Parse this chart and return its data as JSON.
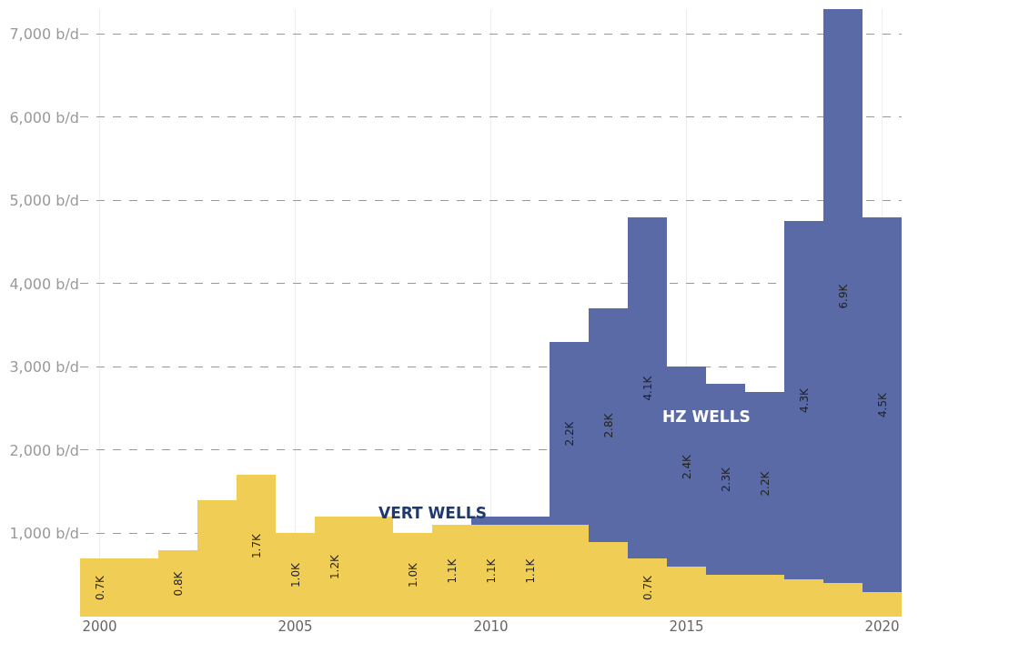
{
  "chart_data": {
    "type": "bar",
    "stacked": true,
    "x": [
      2000,
      2001,
      2002,
      2003,
      2004,
      2005,
      2006,
      2007,
      2008,
      2009,
      2010,
      2011,
      2012,
      2013,
      2014,
      2015,
      2016,
      2017,
      2018,
      2019,
      2020
    ],
    "series": [
      {
        "name": "VERT WELLS",
        "color": "#f0cd55",
        "values": [
          700,
          700,
          800,
          1400,
          1700,
          1000,
          1200,
          1200,
          1000,
          1100,
          1100,
          1100,
          1100,
          900,
          700,
          600,
          500,
          500,
          450,
          400,
          300
        ],
        "value_labels": [
          "0.7K",
          null,
          "0.8K",
          null,
          "1.7K",
          "1.0K",
          "1.2K",
          null,
          "1.0K",
          "1.1K",
          "1.1K",
          "1.1K",
          null,
          null,
          "0.7K",
          null,
          null,
          null,
          null,
          null,
          null
        ]
      },
      {
        "name": "HZ WELLS",
        "color": "#5a6aa6",
        "values": [
          null,
          null,
          null,
          null,
          null,
          null,
          null,
          null,
          null,
          null,
          100,
          100,
          2200,
          2800,
          4100,
          2400,
          2300,
          2200,
          4300,
          6900,
          4500
        ],
        "value_labels": [
          null,
          null,
          null,
          null,
          null,
          null,
          null,
          null,
          null,
          null,
          null,
          null,
          "2.2K",
          "2.8K",
          "4.1K",
          "2.4K",
          "2.3K",
          "2.2K",
          "4.3K",
          "6.9K",
          "4.5K"
        ]
      }
    ],
    "xlim": [
      1999.5,
      2020.5
    ],
    "xticks": [
      2000,
      2005,
      2010,
      2015,
      2020
    ],
    "ylim": [
      0,
      7300
    ],
    "yticks": [
      {
        "value": 1000,
        "label": "1,000 b/d"
      },
      {
        "value": 2000,
        "label": "2,000 b/d"
      },
      {
        "value": 3000,
        "label": "3,000 b/d"
      },
      {
        "value": 4000,
        "label": "4,000 b/d"
      },
      {
        "value": 5000,
        "label": "5,000 b/d"
      },
      {
        "value": 6000,
        "label": "6,000 b/d"
      },
      {
        "value": 7000,
        "label": "7,000 b/d"
      }
    ],
    "grid": true,
    "legend": false
  }
}
